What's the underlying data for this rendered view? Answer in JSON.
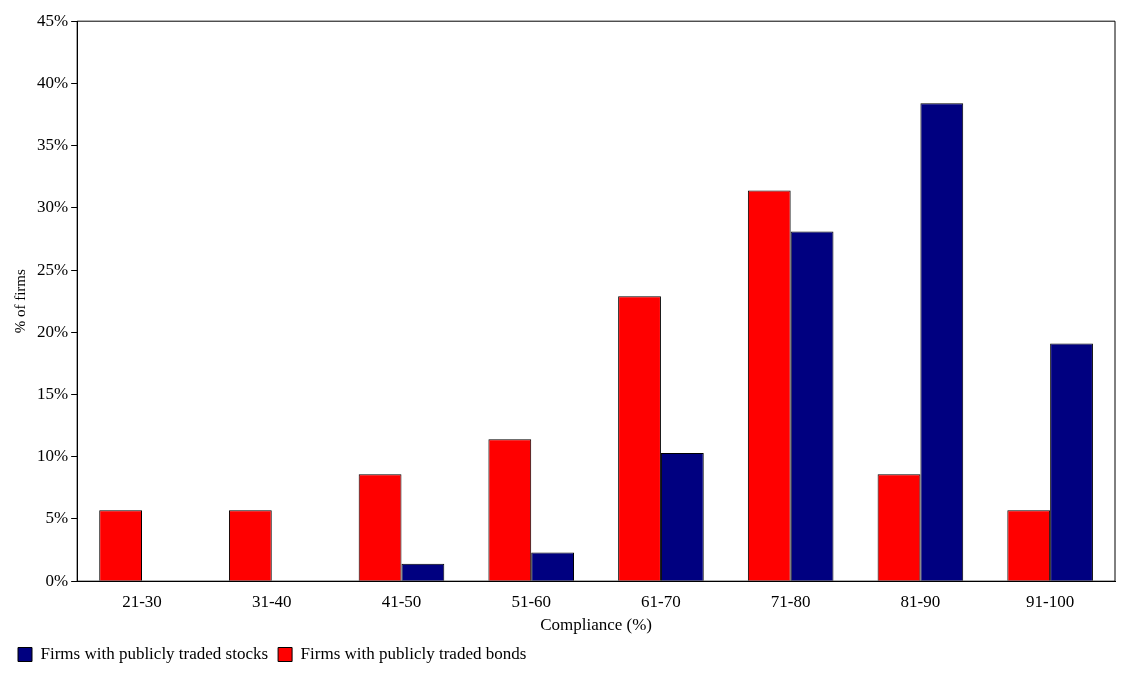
{
  "chart_data": {
    "type": "bar",
    "xlabel": "Compliance (%)",
    "ylabel": "% of firms",
    "categories": [
      "21-30",
      "31-40",
      "41-50",
      "51-60",
      "61-70",
      "71-80",
      "81-90",
      "91-100"
    ],
    "series": [
      {
        "name": "Firms with publicly traded bonds",
        "color": "#ff0000",
        "values": [
          5.7,
          5.7,
          8.6,
          11.4,
          22.9,
          31.4,
          8.6,
          5.7
        ]
      },
      {
        "name": "Firms with publicly traded stocks",
        "color": "#000080",
        "values": [
          0,
          0,
          1.4,
          2.3,
          10.3,
          28.1,
          38.4,
          19.1
        ]
      }
    ],
    "ylim": [
      0,
      45
    ],
    "yticks": [
      {
        "value": 0,
        "label": "0%"
      },
      {
        "value": 5,
        "label": "5%"
      },
      {
        "value": 10,
        "label": "10%"
      },
      {
        "value": 15,
        "label": "15%"
      },
      {
        "value": 20,
        "label": "20%"
      },
      {
        "value": 25,
        "label": "25%"
      },
      {
        "value": 30,
        "label": "30%"
      },
      {
        "value": 35,
        "label": "35%"
      },
      {
        "value": 40,
        "label": "40%"
      },
      {
        "value": 45,
        "label": "45%"
      }
    ],
    "grid": false,
    "legend": "bottom left"
  }
}
